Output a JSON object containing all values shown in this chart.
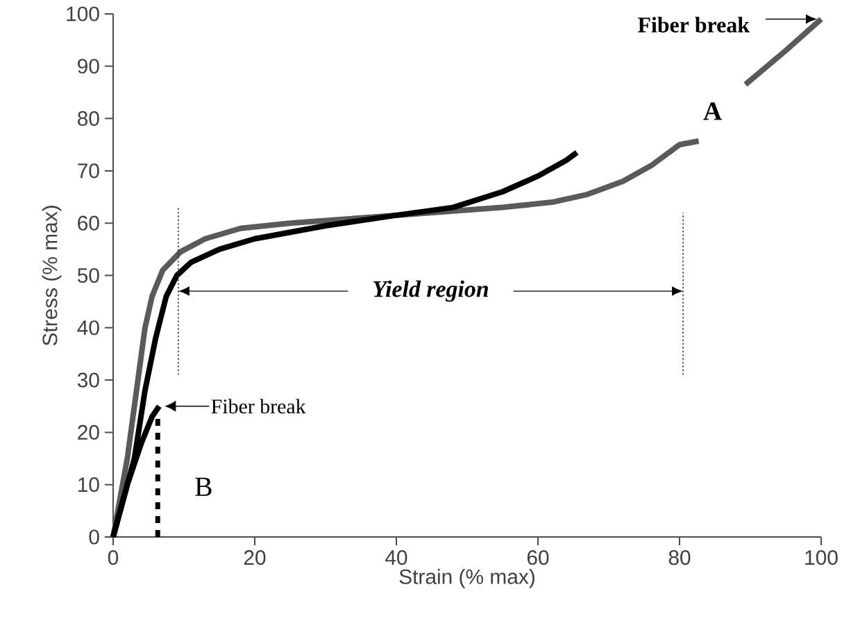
{
  "chart_data": {
    "type": "line",
    "xlabel": "Strain (% max)",
    "ylabel": "Stress (% max)",
    "xlim": [
      0,
      100
    ],
    "ylim": [
      0,
      100
    ],
    "xticks": [
      0,
      20,
      40,
      60,
      80,
      100
    ],
    "yticks": [
      0,
      10,
      20,
      30,
      40,
      50,
      60,
      70,
      80,
      90,
      100
    ],
    "grid": false,
    "marker": "none",
    "series": [
      {
        "name": "A",
        "color": "#5a5a5a",
        "line_style": "solid",
        "x": [
          0,
          2,
          3.5,
          4.5,
          5.5,
          7,
          9.5,
          13,
          18,
          25,
          35,
          45,
          55,
          62,
          67,
          72,
          76,
          80,
          82.7,
          86,
          89.3,
          95,
          100
        ],
        "values": [
          0,
          15,
          30,
          40,
          46,
          51,
          54.5,
          57,
          59,
          60,
          61,
          62,
          63,
          64,
          65.5,
          68,
          71,
          75,
          75.7,
          null,
          86.5,
          93,
          99
        ]
      },
      {
        "color": "#000000",
        "line_style": "solid",
        "x": [
          0,
          3,
          4.5,
          6,
          7.5,
          9,
          11,
          15,
          20,
          30,
          40,
          48,
          55,
          60,
          64,
          65.5
        ],
        "values": [
          0,
          15,
          28,
          38,
          46,
          50,
          52.5,
          55,
          57,
          59.5,
          61.5,
          63,
          66,
          69,
          72,
          73.5
        ]
      },
      {
        "name": "B",
        "color": "#000000",
        "line_style": "solid",
        "x": [
          0,
          2,
          4,
          5.5,
          6.5
        ],
        "values": [
          0,
          10,
          18,
          23,
          25
        ]
      },
      {
        "color": "#000000",
        "line_style": "dashed",
        "x": [
          6.3,
          6.3
        ],
        "values": [
          0,
          23
        ]
      },
      {
        "color": "#333333",
        "line_style": "dotted",
        "x": [
          9.2,
          9.2
        ],
        "values": [
          31,
          63
        ]
      },
      {
        "color": "#333333",
        "line_style": "dotted",
        "x": [
          80.5,
          80.5
        ],
        "values": [
          31,
          62
        ]
      }
    ],
    "annotations": [
      "Fiber break",
      "Yield region",
      "Fiber break"
    ]
  }
}
